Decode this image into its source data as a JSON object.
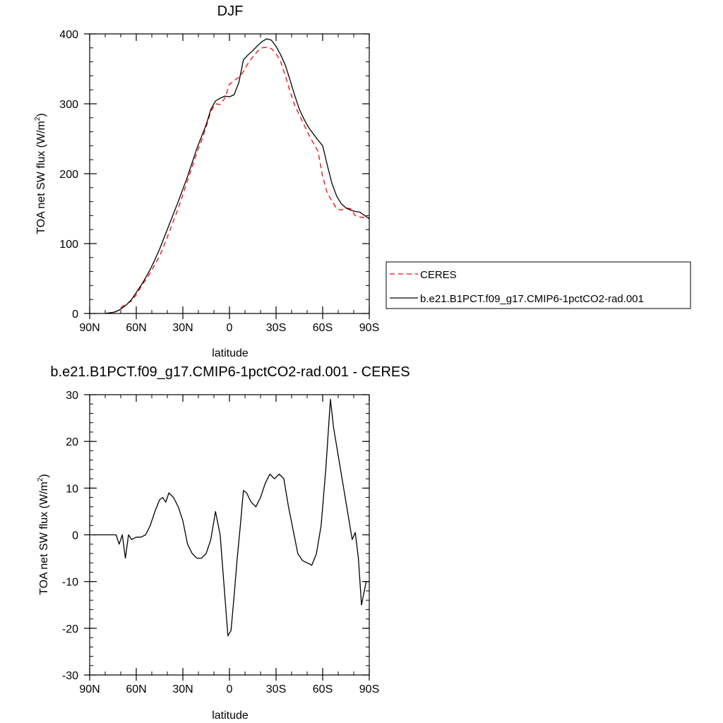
{
  "chart_data": [
    {
      "type": "line",
      "title": "DJF",
      "xlabel": "latitude",
      "ylabel": "TOA net SW flux (W/m",
      "ylabel_sup": "2",
      "ylabel_close": ")",
      "xlim": [
        90,
        -90
      ],
      "ylim": [
        0,
        400
      ],
      "xticks": [
        90,
        60,
        30,
        0,
        -30,
        -60,
        -90
      ],
      "xtick_labels": [
        "90N",
        "60N",
        "30N",
        "0",
        "30S",
        "60S",
        "90S"
      ],
      "yticks": [
        0,
        100,
        200,
        300,
        400
      ],
      "ytick_labels": [
        "0",
        "100",
        "200",
        "300",
        "400"
      ],
      "legend_position": "right",
      "series": [
        {
          "name": "CERES",
          "color": "#ff0000",
          "dash": "dashed",
          "x": [
            80,
            77,
            74,
            71,
            69,
            66,
            63,
            60,
            57,
            54,
            51,
            48,
            45,
            42,
            39,
            36,
            33,
            30,
            27,
            24,
            21,
            18,
            15,
            12,
            9,
            6,
            3,
            0,
            -3,
            -6,
            -9,
            -12,
            -15,
            -18,
            -21,
            -24,
            -27,
            -30,
            -33,
            -36,
            -39,
            -42,
            -45,
            -48,
            -51,
            -54,
            -57,
            -60,
            -63,
            -66,
            -69,
            -72,
            -75,
            -78,
            -81,
            -84,
            -87,
            -90
          ],
          "y": [
            0,
            1,
            2,
            5,
            10,
            14,
            18,
            27,
            38,
            48,
            58,
            70,
            82,
            98,
            115,
            133,
            150,
            170,
            190,
            210,
            230,
            247,
            267,
            289,
            300,
            299,
            308,
            328,
            333,
            338,
            346,
            358,
            367,
            375,
            380,
            381,
            379,
            372,
            360,
            340,
            318,
            298,
            284,
            270,
            256,
            244,
            232,
            196,
            172,
            161,
            150,
            148,
            151,
            150,
            140,
            138,
            137,
            136
          ]
        },
        {
          "name": "b.e21.B1PCT.f09_g17.CMIP6-1pctCO2-rad.001",
          "color": "#000000",
          "dash": "solid",
          "x": [
            80,
            77,
            74,
            71,
            69,
            66,
            63,
            60,
            57,
            54,
            51,
            48,
            45,
            42,
            39,
            36,
            33,
            30,
            27,
            24,
            21,
            18,
            15,
            12,
            9,
            6,
            3,
            0,
            -3,
            -6,
            -9,
            -12,
            -15,
            -18,
            -21,
            -24,
            -27,
            -30,
            -33,
            -36,
            -39,
            -42,
            -45,
            -48,
            -51,
            -54,
            -57,
            -60,
            -63,
            -66,
            -69,
            -72,
            -75,
            -78,
            -81,
            -84,
            -87,
            -90
          ],
          "y": [
            0,
            1,
            2,
            5,
            8,
            13,
            20,
            30,
            40,
            51,
            63,
            77,
            92,
            109,
            126,
            143,
            160,
            178,
            196,
            216,
            236,
            253,
            270,
            292,
            304,
            308,
            311,
            310,
            313,
            330,
            363,
            370,
            376,
            383,
            389,
            393,
            391,
            382,
            370,
            355,
            334,
            312,
            292,
            278,
            266,
            257,
            248,
            240,
            212,
            186,
            168,
            157,
            151,
            148,
            146,
            145,
            140,
            136
          ]
        }
      ]
    },
    {
      "type": "line",
      "title": "b.e21.B1PCT.f09_g17.CMIP6-1pctCO2-rad.001 - CERES",
      "xlabel": "latitude",
      "ylabel": "TOA net SW flux (W/m",
      "ylabel_sup": "2",
      "ylabel_close": ")",
      "xlim": [
        90,
        -90
      ],
      "ylim": [
        -30,
        30
      ],
      "xticks": [
        90,
        60,
        30,
        0,
        -30,
        -60,
        -90
      ],
      "xtick_labels": [
        "90N",
        "60N",
        "30N",
        "0",
        "30S",
        "60S",
        "90S"
      ],
      "yticks": [
        -30,
        -20,
        -10,
        0,
        10,
        20,
        30
      ],
      "ytick_labels": [
        "-30",
        "-20",
        "-10",
        "0",
        "10",
        "20",
        "30"
      ],
      "series": [
        {
          "color": "#000000",
          "dash": "solid",
          "x": [
            88,
            85,
            82,
            79,
            76,
            73,
            71,
            69,
            67,
            65,
            63,
            60,
            57,
            54,
            51,
            48,
            45,
            43,
            41,
            39,
            36,
            33,
            30,
            27,
            24,
            21,
            18,
            15,
            12,
            9,
            6,
            3,
            1,
            -1,
            -3,
            -5,
            -7,
            -9,
            -11,
            -14,
            -17,
            -20,
            -23,
            -26,
            -29,
            -32,
            -35,
            -38,
            -41,
            -44,
            -47,
            -50,
            -53,
            -56,
            -59,
            -62,
            -65,
            -67,
            -70,
            -73,
            -76,
            -79,
            -81,
            -83,
            -85,
            -88,
            -90
          ],
          "y": [
            0,
            0,
            0,
            0,
            0,
            0,
            -2,
            0,
            -5,
            0,
            -1,
            -0.5,
            -0.5,
            0,
            2,
            5,
            7.5,
            8,
            7,
            9,
            8,
            6,
            3,
            -2,
            -4,
            -5,
            -5,
            -4,
            -1,
            5,
            0,
            -13,
            -21.6,
            -20.5,
            -13,
            -5,
            2,
            9.5,
            9,
            7,
            6,
            8,
            11,
            13,
            12,
            13,
            12,
            6,
            1,
            -4,
            -5.5,
            -6,
            -6.5,
            -4,
            2,
            14,
            29,
            23,
            17,
            11,
            5,
            -1,
            0.5,
            -5,
            -15,
            -10,
            -10
          ]
        }
      ]
    }
  ]
}
